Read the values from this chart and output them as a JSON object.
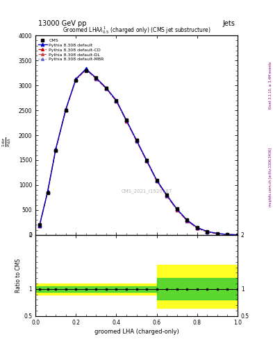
{
  "title_left": "13000 GeV pp",
  "title_right": "Jets",
  "plot_title": "Groomed LHA$\\lambda^{1}_{0.5}$ (charged only) (CMS jet substructure)",
  "xlabel": "groomed LHA (charged-only)",
  "ylabel_parts": [
    "$\\frac{1}{\\sigma}\\frac{\\mathrm{d}\\sigma}{\\mathrm{d}p_{\\mathrm{T}}\\mathrm{d}\\lambda}$"
  ],
  "ratio_ylabel": "Ratio to CMS",
  "watermark": "CMS_2021_I1920187",
  "x_data": [
    0.02,
    0.06,
    0.1,
    0.15,
    0.2,
    0.25,
    0.3,
    0.35,
    0.4,
    0.45,
    0.5,
    0.55,
    0.6,
    0.65,
    0.7,
    0.75,
    0.8,
    0.85,
    0.9,
    0.95,
    1.0
  ],
  "cms_y": [
    200,
    850,
    1700,
    2500,
    3100,
    3300,
    3150,
    2950,
    2700,
    2300,
    1900,
    1500,
    1100,
    800,
    520,
    300,
    150,
    70,
    30,
    10,
    3
  ],
  "pythia_default_y": [
    190,
    870,
    1720,
    2520,
    3130,
    3330,
    3150,
    2950,
    2700,
    2300,
    1900,
    1500,
    1100,
    800,
    520,
    300,
    150,
    70,
    30,
    10,
    3
  ],
  "pythia_cd_y": [
    195,
    860,
    1710,
    2510,
    3120,
    3320,
    3140,
    2940,
    2690,
    2290,
    1890,
    1490,
    1090,
    790,
    510,
    290,
    140,
    65,
    28,
    9,
    2
  ],
  "pythia_dl_y": [
    185,
    855,
    1705,
    2505,
    3115,
    3315,
    3135,
    2935,
    2685,
    2285,
    1885,
    1485,
    1085,
    785,
    505,
    285,
    135,
    62,
    26,
    8,
    2
  ],
  "pythia_mbr_y": [
    180,
    850,
    1700,
    2500,
    3110,
    3310,
    3130,
    2930,
    2680,
    2280,
    1880,
    1480,
    1080,
    780,
    500,
    280,
    130,
    60,
    24,
    7,
    2
  ],
  "ylim_max": 4000,
  "xlim": [
    0,
    1.0
  ],
  "ratio_ylim": [
    0.5,
    2.0
  ],
  "color_default": "#0000cc",
  "color_cd": "#cc0000",
  "color_dl": "#cc4444",
  "color_mbr": "#6666cc",
  "right_label_1": "Rivet 3.1.10, ≥ 3.4M events",
  "right_label_2": "mcplots.cern.ch [arXiv:1306.3436]",
  "ytick_vals": [
    0,
    500,
    1000,
    1500,
    2000,
    2500,
    3000,
    3500,
    4000
  ],
  "ytick_labels": [
    "0",
    "500",
    "1000",
    "1500",
    "2000",
    "2500",
    "3000",
    "3500",
    "4000"
  ]
}
